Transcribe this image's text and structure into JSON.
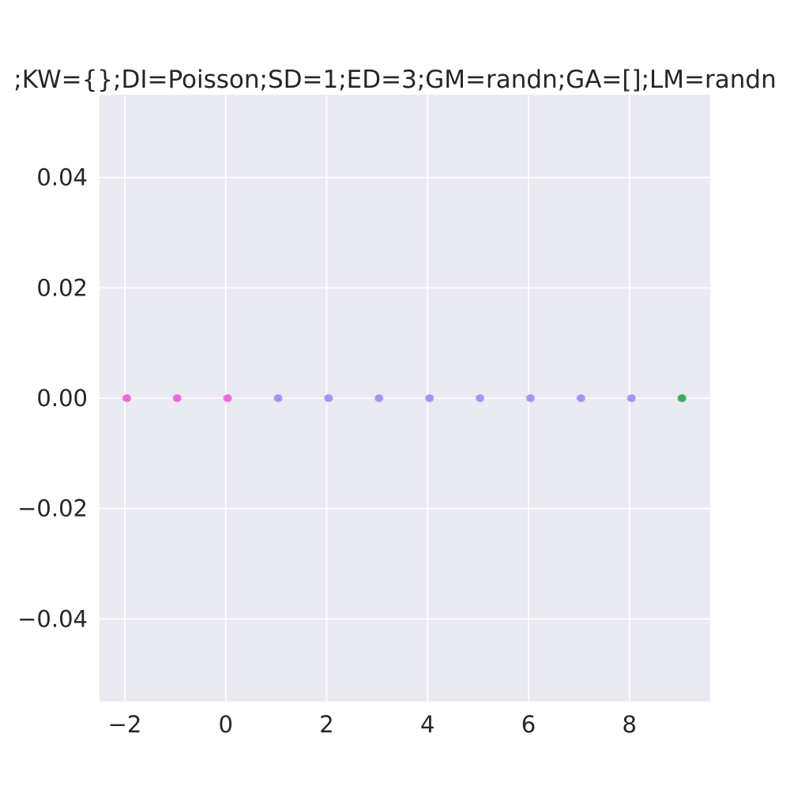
{
  "chart_data": {
    "type": "scatter",
    "title": ";KW={};DI=Poisson;SD=1;ED=3;GM=randn;GA=[];LM=randn",
    "xlabel": "",
    "ylabel": "",
    "xlim": [
      -2.5,
      9.6
    ],
    "ylim": [
      -0.055,
      0.055
    ],
    "xticks": [
      -2,
      0,
      2,
      4,
      6,
      8
    ],
    "xtick_labels": [
      "−2",
      "0",
      "2",
      "4",
      "6",
      "8"
    ],
    "yticks": [
      -0.04,
      -0.02,
      0.0,
      0.02,
      0.04
    ],
    "ytick_labels": [
      "−0.04",
      "−0.02",
      "0.00",
      "0.02",
      "0.04"
    ],
    "grid": true,
    "background_color": "#eaeaf2",
    "grid_color": "#ffffff",
    "series": [
      {
        "color": "#ee5fd6",
        "x": [
          -2,
          -1,
          0
        ],
        "y": [
          0,
          0,
          0
        ]
      },
      {
        "color": "#9f8ced",
        "x": [
          1,
          2,
          3,
          4,
          5,
          6,
          7,
          8
        ],
        "y": [
          0,
          0,
          0,
          0,
          0,
          0,
          0,
          0
        ]
      },
      {
        "color": "#2ea55a",
        "x": [
          9
        ],
        "y": [
          0
        ]
      }
    ]
  }
}
